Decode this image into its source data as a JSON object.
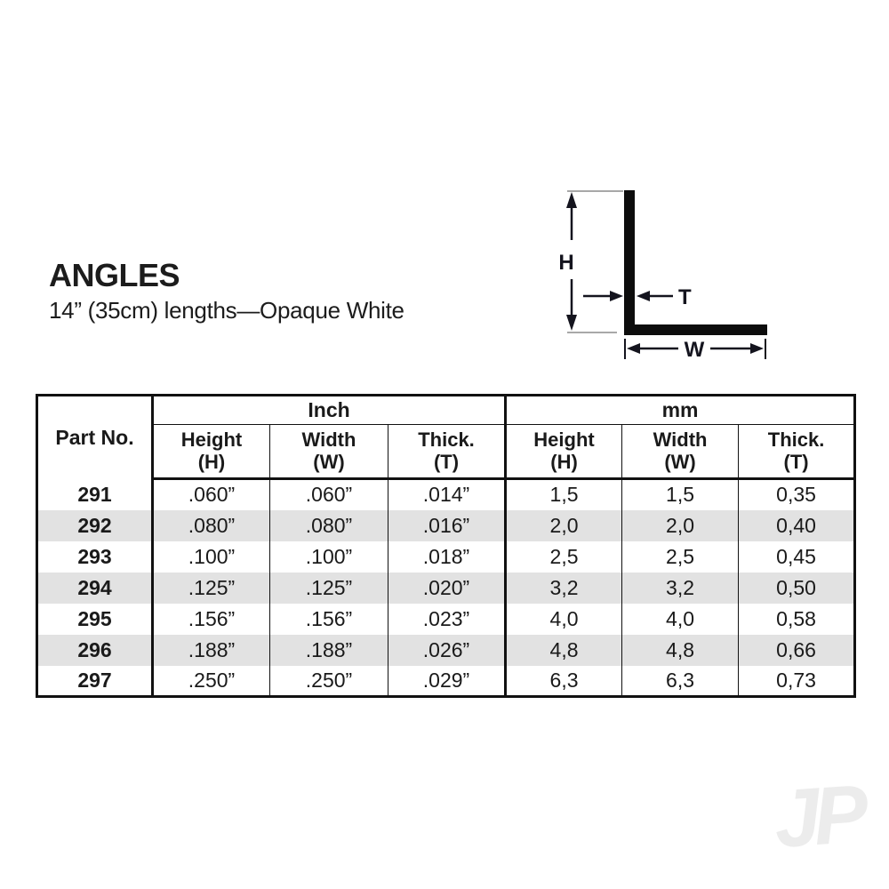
{
  "header": {
    "title": "ANGLES",
    "subtitle": "14” (35cm) lengths—Opaque White"
  },
  "diagram": {
    "labels": {
      "height": "H",
      "thickness": "T",
      "width": "W"
    },
    "shape_color": "#0d0d0d",
    "extension_line_color": "#a8a8a8"
  },
  "table": {
    "group_headers": {
      "part_no": "Part No.",
      "inch": "Inch",
      "mm": "mm"
    },
    "sub_headers": [
      {
        "line1": "Height",
        "line2": "(H)"
      },
      {
        "line1": "Width",
        "line2": "(W)"
      },
      {
        "line1": "Thick.",
        "line2": "(T)"
      },
      {
        "line1": "Height",
        "line2": "(H)"
      },
      {
        "line1": "Width",
        "line2": "(W)"
      },
      {
        "line1": "Thick.",
        "line2": "(T)"
      }
    ],
    "rows": [
      {
        "cells": [
          "291",
          ".060”",
          ".060”",
          ".014”",
          "1,5",
          "1,5",
          "0,35"
        ]
      },
      {
        "cells": [
          "292",
          ".080”",
          ".080”",
          ".016”",
          "2,0",
          "2,0",
          "0,40"
        ]
      },
      {
        "cells": [
          "293",
          ".100”",
          ".100”",
          ".018”",
          "2,5",
          "2,5",
          "0,45"
        ]
      },
      {
        "cells": [
          "294",
          ".125”",
          ".125”",
          ".020”",
          "3,2",
          "3,2",
          "0,50"
        ]
      },
      {
        "cells": [
          "295",
          ".156”",
          ".156”",
          ".023”",
          "4,0",
          "4,0",
          "0,58"
        ]
      },
      {
        "cells": [
          "296",
          ".188”",
          ".188”",
          ".026”",
          "4,8",
          "4,8",
          "0,66"
        ]
      },
      {
        "cells": [
          "297",
          ".250”",
          ".250”",
          ".029”",
          "6,3",
          "6,3",
          "0,73"
        ]
      }
    ]
  },
  "watermark": {
    "text": "JP"
  },
  "colors": {
    "text": "#1a1a1a",
    "table_border": "#111111",
    "row_shade": "#e2e2e2",
    "watermark": "#ececec",
    "diagram_tick": "#a8a8a8"
  }
}
